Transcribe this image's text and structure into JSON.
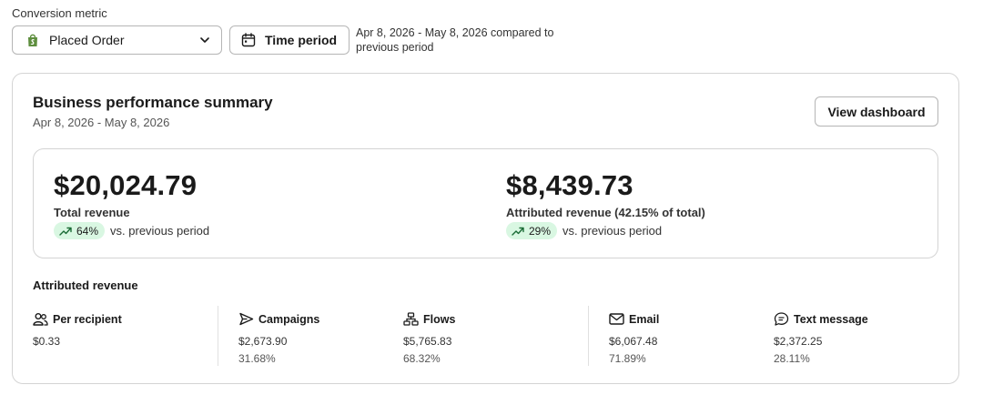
{
  "filters": {
    "conversion_label": "Conversion metric",
    "metric_value": "Placed Order",
    "time_button_label": "Time period",
    "range_description": "Apr 8, 2026 - May 8, 2026 compared to previous period"
  },
  "card": {
    "title": "Business performance summary",
    "date_range": "Apr 8, 2026 - May 8, 2026",
    "view_dashboard_label": "View dashboard"
  },
  "summary": {
    "total": {
      "value": "$20,024.79",
      "label": "Total revenue",
      "change": "64%",
      "change_label": "vs. previous period"
    },
    "attributed": {
      "value": "$8,439.73",
      "label": "Attributed revenue (42.15% of total)",
      "change": "29%",
      "change_label": "vs. previous period"
    }
  },
  "attributed": {
    "title": "Attributed revenue",
    "columns": [
      {
        "icon": "users-icon",
        "label": "Per recipient",
        "value": "$0.33",
        "percent": ""
      },
      {
        "icon": "send-icon",
        "label": "Campaigns",
        "value": "$2,673.90",
        "percent": "31.68%"
      },
      {
        "icon": "flows-icon",
        "label": "Flows",
        "value": "$5,765.83",
        "percent": "68.32%"
      },
      {
        "icon": "mail-icon",
        "label": "Email",
        "value": "$6,067.48",
        "percent": "71.89%"
      },
      {
        "icon": "message-icon",
        "label": "Text message",
        "value": "$2,372.25",
        "percent": "28.11%"
      }
    ]
  },
  "colors": {
    "positive_pill": "#d9f7e2",
    "shopify_green": "#5e8e3e",
    "border": "#d4d4d4"
  }
}
